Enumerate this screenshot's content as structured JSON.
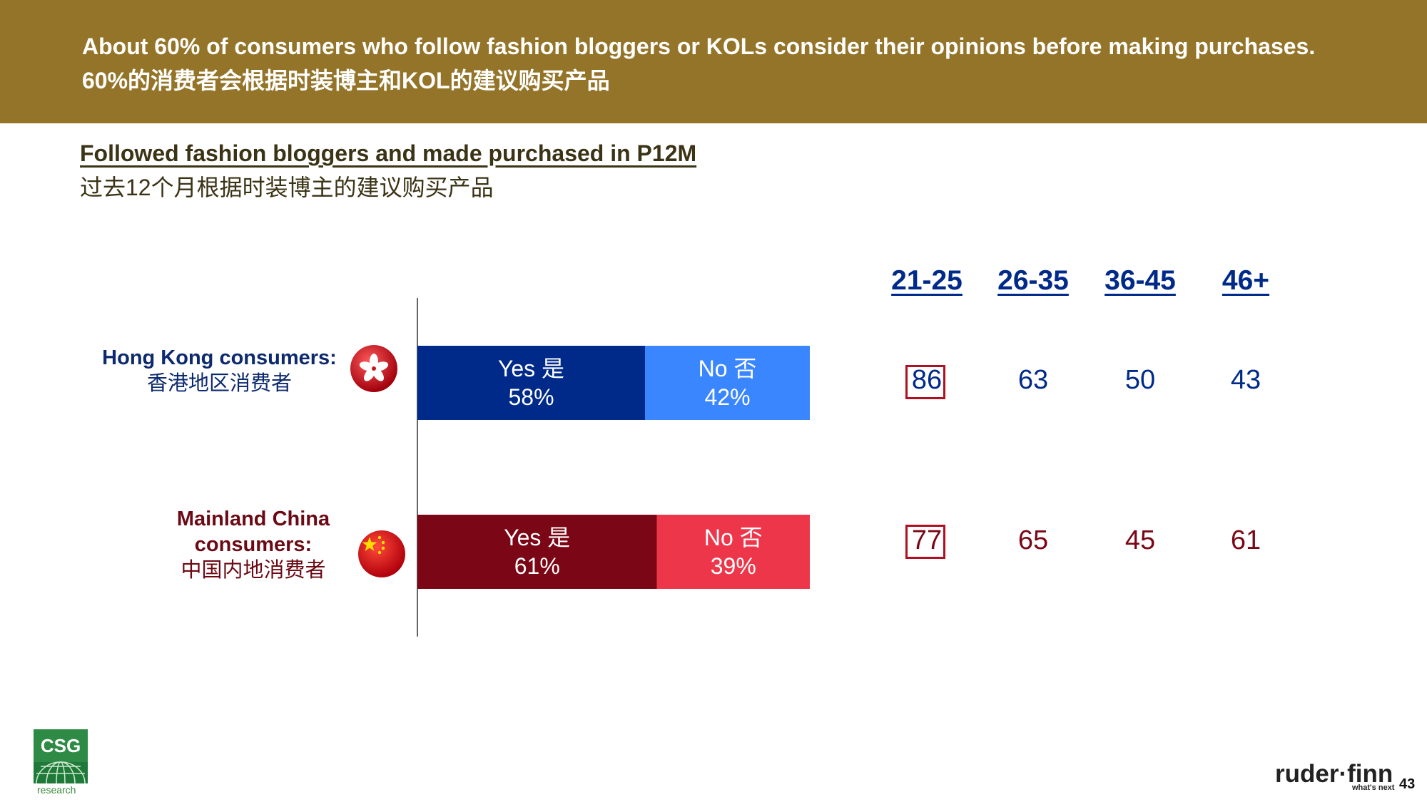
{
  "header": {
    "line_en": "About 60% of consumers who follow fashion bloggers or KOLs consider their opinions before making purchases.",
    "line_zh": "60%的消费者会根据时装博主和KOL的建议购买产品"
  },
  "subtitle": {
    "en": "Followed fashion bloggers and made purchased in P12M",
    "zh": "过去12个月根据时装博主的建议购买产品"
  },
  "chart_data": {
    "type": "bar",
    "orientation": "horizontal",
    "stacked": true,
    "percent_suffix": "%",
    "categories": [
      {
        "line1": "Hong Kong consumers:",
        "line2": "",
        "line3": "香港地区消费者"
      },
      {
        "line1": "Mainland China",
        "line2": "consumers:",
        "line3": "中国内地消费者"
      }
    ],
    "series": [
      {
        "name": "Yes 是",
        "values": [
          58,
          61
        ]
      },
      {
        "name": "No 否",
        "values": [
          42,
          39
        ]
      }
    ],
    "colors": {
      "hk_yes": "#002a8a",
      "hk_no": "#3a86ff",
      "cn_yes": "#7a0616",
      "cn_no": "#ee364b"
    },
    "xlim": [
      0,
      100
    ],
    "age_breakdown": {
      "groups": [
        "21-25",
        "26-35",
        "36-45",
        "46+"
      ],
      "hong_kong": [
        86,
        63,
        50,
        43
      ],
      "mainland_china": [
        77,
        65,
        45,
        61
      ],
      "highlighted_group": "21-25"
    }
  },
  "logos": {
    "csg": "CSG",
    "csg_sub": "research",
    "ruderfinn": "ruder·finn",
    "ruderfinn_tag": "what's next"
  },
  "page_number": "43",
  "icons": [
    "hong-kong-flag-icon",
    "china-flag-icon",
    "csg-globe-icon"
  ]
}
